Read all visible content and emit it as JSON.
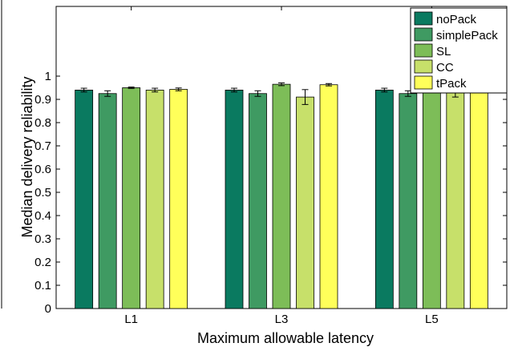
{
  "chart_data": {
    "type": "bar",
    "title": "",
    "xlabel": "Maximum allowable latency",
    "ylabel": "Median delivery reliability",
    "categories": [
      "L1",
      "L3",
      "L5"
    ],
    "ylim": [
      0,
      1.3
    ],
    "yticks": [
      0,
      0.1,
      0.2,
      0.3,
      0.4,
      0.5,
      0.6,
      0.7,
      0.8,
      0.9,
      1
    ],
    "ytick_labels": [
      "0",
      "0.1",
      "0.2",
      "0.3",
      "0.4",
      "0.5",
      "0.6",
      "0.7",
      "0.8",
      "0.9",
      "1"
    ],
    "grid": false,
    "legend_position": "top-right",
    "series": [
      {
        "name": "noPack",
        "color": "#0a7a60",
        "values": [
          0.94,
          0.94,
          0.94
        ],
        "errors": [
          0.008,
          0.008,
          0.008
        ]
      },
      {
        "name": "simplePack",
        "color": "#3f9a62",
        "values": [
          0.925,
          0.925,
          0.925
        ],
        "errors": [
          0.012,
          0.012,
          0.012
        ]
      },
      {
        "name": "SL",
        "color": "#7dbd58",
        "values": [
          0.95,
          0.965,
          0.96
        ],
        "errors": [
          0.003,
          0.006,
          0.003
        ]
      },
      {
        "name": "CC",
        "color": "#c7e06a",
        "values": [
          0.94,
          0.91,
          0.935
        ],
        "errors": [
          0.008,
          0.032,
          0.025
        ]
      },
      {
        "name": "tPack",
        "color": "#ffff5a",
        "values": [
          0.943,
          0.963,
          0.95
        ],
        "errors": [
          0.006,
          0.005,
          0.01
        ]
      }
    ]
  }
}
